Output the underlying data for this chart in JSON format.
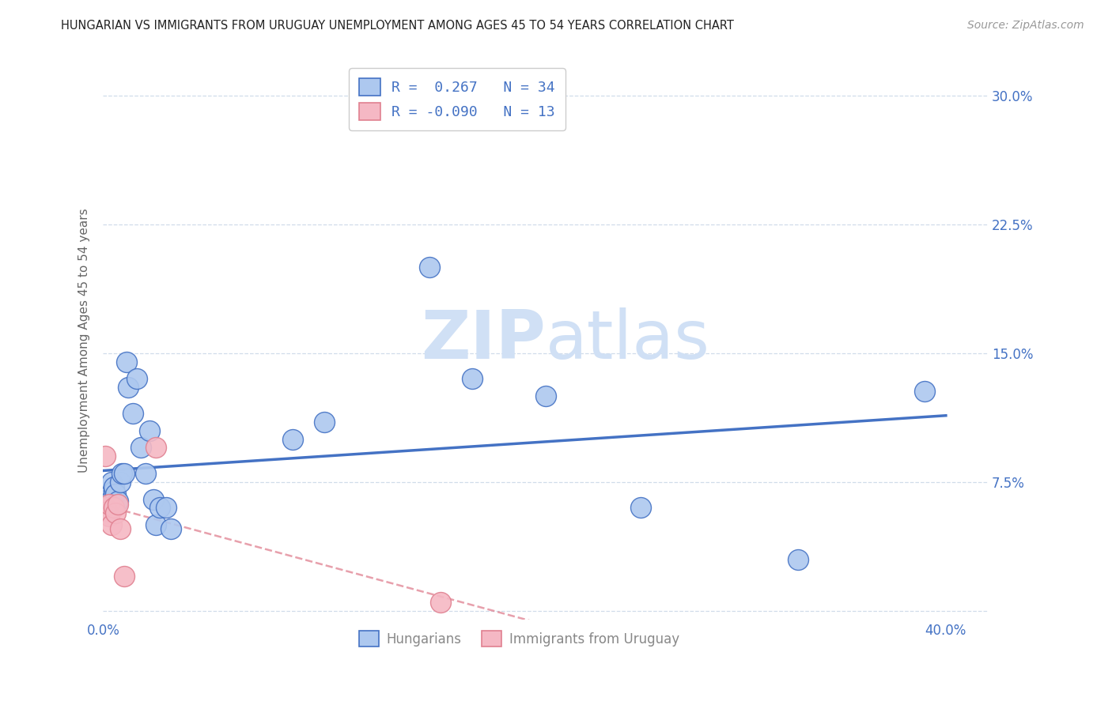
{
  "title": "HUNGARIAN VS IMMIGRANTS FROM URUGUAY UNEMPLOYMENT AMONG AGES 45 TO 54 YEARS CORRELATION CHART",
  "source": "Source: ZipAtlas.com",
  "ylabel": "Unemployment Among Ages 45 to 54 years",
  "xlim": [
    0.0,
    0.42
  ],
  "ylim": [
    -0.005,
    0.32
  ],
  "hungarian_R": 0.267,
  "hungarian_N": 34,
  "uruguay_R": -0.09,
  "uruguay_N": 13,
  "hungarian_color": "#adc8ef",
  "hungarian_line_color": "#4472c4",
  "uruguay_color": "#f5b8c4",
  "uruguay_line_color": "#e08090",
  "watermark_zip": "ZIP",
  "watermark_atlas": "atlas",
  "watermark_color": "#d0e0f5",
  "hungarian_x": [
    0.001,
    0.002,
    0.002,
    0.003,
    0.003,
    0.004,
    0.004,
    0.005,
    0.005,
    0.006,
    0.007,
    0.008,
    0.009,
    0.01,
    0.011,
    0.012,
    0.014,
    0.016,
    0.018,
    0.02,
    0.022,
    0.024,
    0.025,
    0.027,
    0.03,
    0.032,
    0.09,
    0.105,
    0.155,
    0.175,
    0.21,
    0.255,
    0.33,
    0.39
  ],
  "hungarian_y": [
    0.06,
    0.058,
    0.065,
    0.062,
    0.068,
    0.065,
    0.075,
    0.07,
    0.072,
    0.068,
    0.064,
    0.075,
    0.08,
    0.08,
    0.145,
    0.13,
    0.115,
    0.135,
    0.095,
    0.08,
    0.105,
    0.065,
    0.05,
    0.06,
    0.06,
    0.048,
    0.1,
    0.11,
    0.2,
    0.135,
    0.125,
    0.06,
    0.03,
    0.128
  ],
  "uruguay_x": [
    0.001,
    0.001,
    0.002,
    0.003,
    0.003,
    0.004,
    0.005,
    0.006,
    0.007,
    0.008,
    0.01,
    0.025,
    0.16
  ],
  "uruguay_y": [
    0.09,
    0.06,
    0.058,
    0.055,
    0.062,
    0.05,
    0.06,
    0.057,
    0.062,
    0.048,
    0.02,
    0.095,
    0.005
  ],
  "grid_color": "#d0dcea",
  "grid_yticks": [
    0.0,
    0.075,
    0.15,
    0.225,
    0.3
  ],
  "xtick_positions": [
    0.0,
    0.4
  ],
  "xtick_labels": [
    "0.0%",
    "40.0%"
  ],
  "ytick_labels_right": [
    "7.5%",
    "15.0%",
    "22.5%",
    "30.0%"
  ],
  "ytick_positions_right": [
    0.075,
    0.15,
    0.225,
    0.3
  ],
  "tick_color": "#4472c4",
  "bottom_legend_labels": [
    "Hungarians",
    "Immigrants from Uruguay"
  ]
}
